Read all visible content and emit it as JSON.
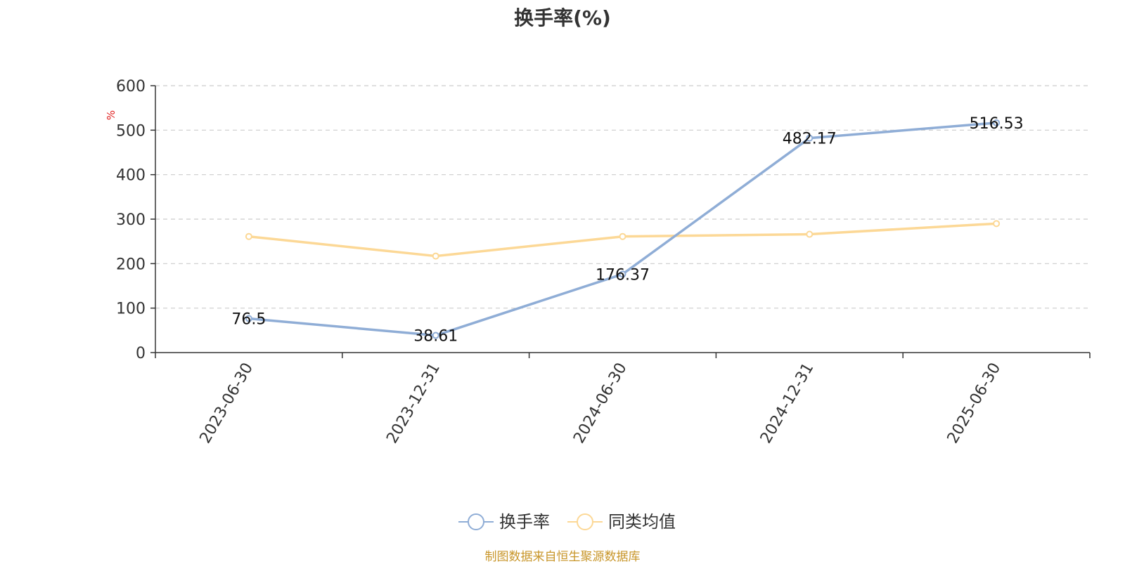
{
  "chart_data": {
    "type": "line",
    "title": "换手率(%)",
    "ylabel": "%",
    "xlabel": "",
    "categories": [
      "2023-06-30",
      "2023-12-31",
      "2024-06-30",
      "2024-12-31",
      "2025-06-30"
    ],
    "ylim": [
      0,
      600
    ],
    "yticks": [
      0,
      100,
      200,
      300,
      400,
      500,
      600
    ],
    "grid": true,
    "legend_position": "bottom-center",
    "series": [
      {
        "name": "换手率",
        "values": [
          76.5,
          38.61,
          176.37,
          482.17,
          516.53
        ],
        "color": "#8fadd6",
        "show_labels": true
      },
      {
        "name": "同类均值",
        "values": [
          261,
          217,
          261,
          266,
          290
        ],
        "color": "#fcd896",
        "show_labels": false
      }
    ]
  },
  "footer": {
    "source": "制图数据来自恒生聚源数据库",
    "color": "#c8962a"
  },
  "colors": {
    "axis": "#333333",
    "grid": "#cccccc",
    "ylabel": "#e02020"
  }
}
